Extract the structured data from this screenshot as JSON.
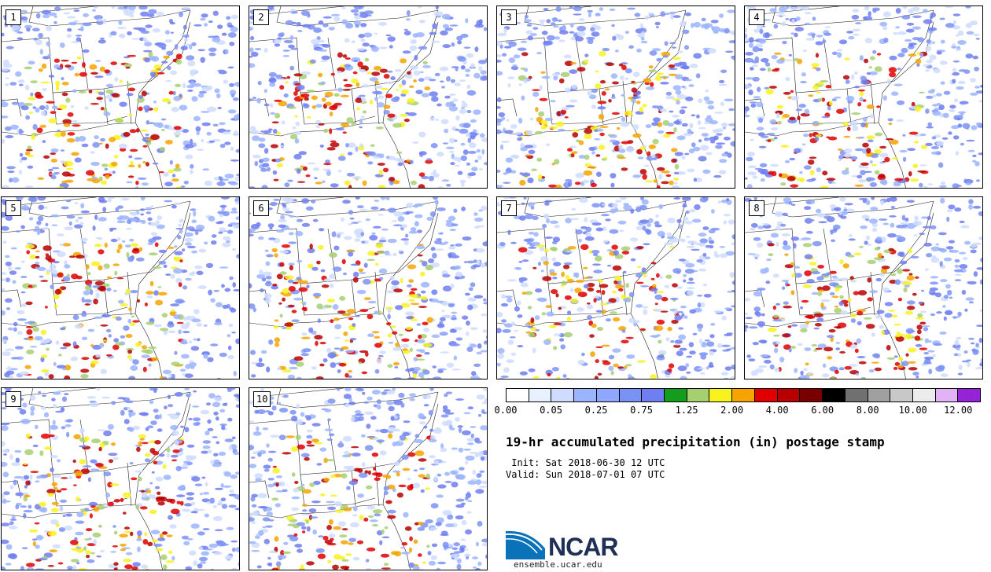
{
  "panels": [
    "1",
    "2",
    "3",
    "4",
    "5",
    "6",
    "7",
    "8",
    "9",
    "10"
  ],
  "colorbar": {
    "colors": [
      "#ffffff",
      "#e8f1ff",
      "#cfdcff",
      "#9bb4ff",
      "#8fa7ff",
      "#7b92f5",
      "#6f7ef0",
      "#149c1c",
      "#a6cf72",
      "#f7f21e",
      "#f4a300",
      "#e00000",
      "#b80000",
      "#7a0000",
      "#000000",
      "#707070",
      "#a0a0a0",
      "#c8c8c8",
      "#ececec",
      "#e2b2f7",
      "#9524d8"
    ],
    "tick_labels": [
      "0.00",
      "0.05",
      "0.25",
      "0.75",
      "1.25",
      "2.00",
      "4.00",
      "6.00",
      "8.00",
      "10.00",
      "12.00"
    ]
  },
  "title": "19-hr accumulated precipitation (in) postage stamp",
  "init_line": " Init: Sat 2018-06-30 12 UTC",
  "valid_line": "Valid: Sun 2018-07-01 07 UTC",
  "logo_text": "NCAR",
  "site": "ensemble.ucar.edu"
}
